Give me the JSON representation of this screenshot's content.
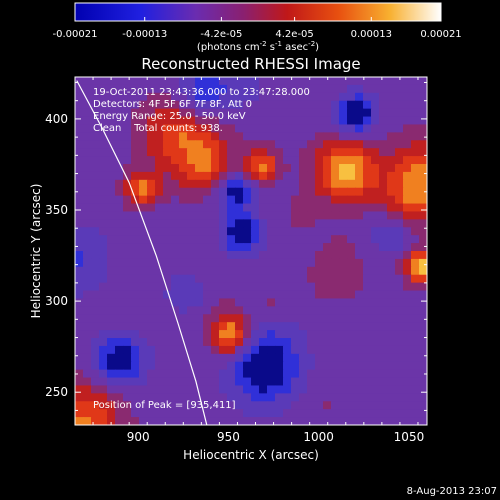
{
  "colorbar": {
    "tick_labels": [
      "-0.00021",
      "-0.00013",
      "-4.2e-05",
      "4.2e-05",
      "0.00013",
      "0.00021"
    ],
    "tick_values": [
      -0.00021,
      -0.00013,
      -4.2e-05,
      4.2e-05,
      0.00013,
      0.00021
    ],
    "range": [
      -0.00021,
      0.00021
    ],
    "unit_main": "(photons cm",
    "unit_exp1": "-2",
    "unit_mid": " s",
    "unit_exp2": "-1",
    "unit_tail": " asec",
    "unit_exp3": "-2",
    "unit_close": ")"
  },
  "chart_data": {
    "type": "heatmap",
    "title": "Reconstructed RHESSI Image",
    "xlabel": "Heliocentric X (arcsec)",
    "ylabel": "Heliocentric Y (arcsec)",
    "xlim": [
      865,
      1060
    ],
    "ylim": [
      232,
      423
    ],
    "x_ticks": [
      900,
      950,
      1000,
      1050
    ],
    "y_ticks": [
      250,
      300,
      350,
      400
    ],
    "annotations": {
      "time_range": "19-Oct-2011 23:43:36.000 to 23:47:28.000",
      "detectors": "Detectors: 4F 5F 6F 7F 8F, Att 0",
      "energy_range": "Energy Range: 25.0 - 50.0 keV",
      "method": "Clean    Total counts: 938.",
      "peak": "Position of Peak = [935,411]"
    },
    "peak_position": [
      935,
      411
    ],
    "limb_curve": [
      [
        866,
        421
      ],
      [
        880,
        395
      ],
      [
        895,
        365
      ],
      [
        910,
        325
      ],
      [
        922,
        288
      ],
      [
        932,
        256
      ],
      [
        938,
        232
      ]
    ]
  },
  "footer": {
    "date_stamp": "8-Aug-2013 23:07"
  },
  "colors": {
    "background": "#000000",
    "text": "#ffffff",
    "colormap": [
      "#0a0a8a",
      "#3030d8",
      "#5a3ab8",
      "#6b35a8",
      "#8a2a70",
      "#c02020",
      "#e03818",
      "#f08020",
      "#f8c040",
      "#ffffff"
    ]
  }
}
